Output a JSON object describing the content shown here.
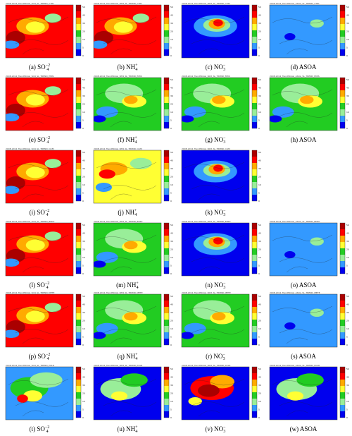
{
  "colors": {
    "c1": "#0000ee",
    "c2": "#3399ff",
    "c3": "#99ee99",
    "c4": "#22cc22",
    "c5": "#ffff33",
    "c6": "#ffaa00",
    "c7": "#ff0000",
    "c8": "#aa0000"
  },
  "colorbar_ticks": [
    "50",
    "40",
    "30",
    "20",
    "10",
    "5",
    "0"
  ],
  "panels": [
    {
      "letter": "(a)",
      "species": "SO",
      "sub": "4",
      "sup": "−2",
      "scheme": "red",
      "header": "2008-2012_TrendModel_SO4_SL_TREND_CTRL"
    },
    {
      "letter": "(b)",
      "species": "NH",
      "sub": "4",
      "sup": "+",
      "scheme": "red",
      "header": "2008-2012_TrendModel_NH4_SL_TREND_CTRL"
    },
    {
      "letter": "(c)",
      "species": "NO",
      "sub": "3",
      "sup": "−",
      "scheme": "blue",
      "header": "2008-2012_TrendModel_NO3_SL_TREND_CTRL"
    },
    {
      "letter": "(d)",
      "species": "ASOA",
      "sub": "",
      "sup": "",
      "scheme": "lightblue",
      "header": "2008-2012_TrendModel_ASOA_SL_TREND_CTRL"
    },
    {
      "letter": "(e)",
      "species": "SO",
      "sub": "4",
      "sup": "−2",
      "scheme": "red",
      "header": "2008-2012_TrendModel_SO4_SL_TREND_EMIS"
    },
    {
      "letter": "(f)",
      "species": "NH",
      "sub": "4",
      "sup": "+",
      "scheme": "green",
      "header": "2008-2012_TrendModel_NH4_SL_TREND_EMIS"
    },
    {
      "letter": "(g)",
      "species": "NO",
      "sub": "3",
      "sup": "−",
      "scheme": "green",
      "header": "2008-2012_TrendModel_NO3_SL_TREND_EMIS"
    },
    {
      "letter": "(h)",
      "species": "ASOA",
      "sub": "",
      "sup": "",
      "scheme": "green",
      "header": "2008-2012_TrendModel_ASOA_SL_TREND_EMIS"
    },
    {
      "letter": "(i)",
      "species": "SO",
      "sub": "4",
      "sup": "−2",
      "scheme": "red",
      "header": "2008-2012_TrendModel_SO4_SL_TREND_CLIM"
    },
    {
      "letter": "(j)",
      "species": "NH",
      "sub": "4",
      "sup": "+",
      "scheme": "yellow",
      "header": "2008-2012_TrendModel_NH4_SL_TREND_CLIM"
    },
    {
      "letter": "(k)",
      "species": "NO",
      "sub": "3",
      "sup": "−",
      "scheme": "blue",
      "header": "2008-2012_TrendModel_NO3_SL_TREND_CLIM"
    },
    {
      "letter": "",
      "species": "",
      "sub": "",
      "sup": "",
      "scheme": "none",
      "header": ""
    },
    {
      "letter": "(l)",
      "species": "SO",
      "sub": "4",
      "sup": "−2",
      "scheme": "red",
      "header": "2008-2012_TrendModel_SO4_SL_TREND_BNDY"
    },
    {
      "letter": "(m)",
      "species": "NH",
      "sub": "4",
      "sup": "+",
      "scheme": "green",
      "header": "2008-2012_TrendModel_NH4_SL_TREND_BNDY"
    },
    {
      "letter": "(n)",
      "species": "NO",
      "sub": "3",
      "sup": "−",
      "scheme": "blue",
      "header": "2008-2012_TrendModel_NO3_SL_TREND_BNDY"
    },
    {
      "letter": "(o)",
      "species": "ASOA",
      "sub": "",
      "sup": "",
      "scheme": "lightblue",
      "header": "2008-2012_TrendModel_ASOA_SL_TREND_BNDY"
    },
    {
      "letter": "(p)",
      "species": "SO",
      "sub": "4",
      "sup": "−2",
      "scheme": "red",
      "header": "2008-2012_TrendModel_SO4_SL_TREND_METE"
    },
    {
      "letter": "(q)",
      "species": "NH",
      "sub": "4",
      "sup": "+",
      "scheme": "green",
      "header": "2008-2012_TrendModel_NH4_SL_TREND_METE"
    },
    {
      "letter": "(r)",
      "species": "NO",
      "sub": "3",
      "sup": "−",
      "scheme": "green",
      "header": "2008-2012_TrendModel_NO3_SL_TREND_METE"
    },
    {
      "letter": "(s)",
      "species": "ASOA",
      "sub": "",
      "sup": "",
      "scheme": "lightblue",
      "header": "2008-2012_TrendModel_ASOA_SL_TREND_METE"
    },
    {
      "letter": "(t)",
      "species": "SO",
      "sub": "4",
      "sup": "−2",
      "scheme": "europe",
      "header": "2008-2012_TrendModel_SO4_SL_TREND_POLR"
    },
    {
      "letter": "(u)",
      "species": "NH",
      "sub": "4",
      "sup": "+",
      "scheme": "europe-blue",
      "header": "2008-2012_TrendModel_NH4_SL_TREND_POLR"
    },
    {
      "letter": "(v)",
      "species": "NO",
      "sub": "3",
      "sup": "−",
      "scheme": "europe-red",
      "header": "2008-2012_TrendModel_NO3_SL_TREND_POLR"
    },
    {
      "letter": "(w)",
      "species": "ASOA",
      "sub": "",
      "sup": "",
      "scheme": "europe-blue",
      "header": "2008-2012_TrendModel_ASOA_SL_TREND_POLR"
    }
  ]
}
